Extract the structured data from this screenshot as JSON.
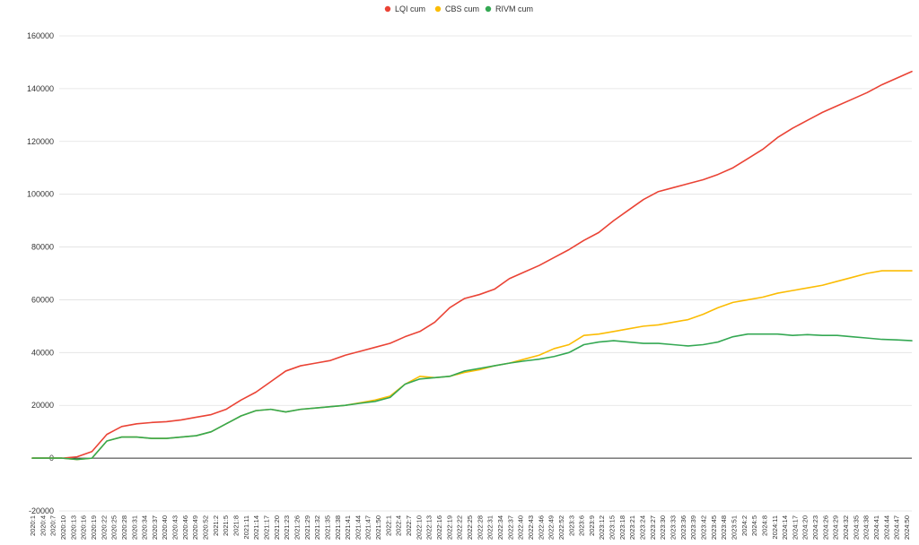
{
  "chart_data": {
    "type": "line",
    "title": "",
    "xlabel": "",
    "ylabel": "",
    "ylim": [
      -20000,
      160000
    ],
    "y_ticks": [
      -20000,
      0,
      20000,
      40000,
      60000,
      80000,
      100000,
      120000,
      140000,
      160000
    ],
    "grid": true,
    "legend_position": "top-center",
    "x_tick_labels": [
      "2020:1",
      "2020:4",
      "2020:7",
      "2020:10",
      "2020:13",
      "2020:16",
      "2020:19",
      "2020:22",
      "2020:25",
      "2020:28",
      "2020:31",
      "2020:34",
      "2020:37",
      "2020:40",
      "2020:43",
      "2020:46",
      "2020:49",
      "2020:52",
      "2021:2",
      "2021:5",
      "2021:8",
      "2021:11",
      "2021:14",
      "2021:17",
      "2021:20",
      "2021:23",
      "2021:26",
      "2021:29",
      "2021:32",
      "2021:35",
      "2021:38",
      "2021:41",
      "2021:44",
      "2021:47",
      "2021:50",
      "2022:1",
      "2022:4",
      "2022:7",
      "2022:10",
      "2022:13",
      "2022:16",
      "2022:19",
      "2022:22",
      "2022:25",
      "2022:28",
      "2022:31",
      "2022:34",
      "2022:37",
      "2022:40",
      "2022:43",
      "2022:46",
      "2022:49",
      "2022:52",
      "2023:3",
      "2023:6",
      "2023:9",
      "2023:12",
      "2023:15",
      "2023:18",
      "2023:21",
      "2023:24",
      "2023:27",
      "2023:30",
      "2023:33",
      "2023:36",
      "2023:39",
      "2023:42",
      "2023:45",
      "2023:48",
      "2023:51",
      "2024:2",
      "2024:5",
      "2024:8",
      "2024:11",
      "2024:14",
      "2024:17",
      "2024:20",
      "2024:23",
      "2024:26",
      "2024:29",
      "2024:32",
      "2024:35",
      "2024:38",
      "2024:41",
      "2024:44",
      "2024:47",
      "2024:50"
    ],
    "series": [
      {
        "name": "LQI cum",
        "color": "#ea4335",
        "values": [
          0,
          0,
          0,
          500,
          2500,
          9000,
          12000,
          13000,
          13500,
          13800,
          14500,
          15500,
          16500,
          18500,
          22000,
          25000,
          29000,
          33000,
          35000,
          36000,
          37000,
          39000,
          40500,
          42000,
          43500,
          46000,
          48000,
          51500,
          57000,
          60500,
          62000,
          64000,
          68000,
          70500,
          73000,
          76000,
          79000,
          82500,
          85500,
          90000,
          94000,
          98000,
          101000,
          102500,
          104000,
          105500,
          107500,
          110000,
          113500,
          117000,
          121500,
          125000,
          128000,
          131000,
          133500,
          136000,
          138500,
          141500,
          144000,
          146500
        ]
      },
      {
        "name": "CBS cum",
        "color": "#fbbc04",
        "values": [
          0,
          0,
          0,
          -500,
          0,
          6500,
          8000,
          8000,
          7500,
          7500,
          8000,
          8500,
          10000,
          13000,
          16000,
          18000,
          18500,
          17500,
          18500,
          19000,
          19500,
          20000,
          21000,
          22000,
          23500,
          28000,
          31000,
          30500,
          31000,
          32500,
          33500,
          35000,
          36000,
          37500,
          39000,
          41500,
          43000,
          46500,
          47000,
          48000,
          49000,
          50000,
          50500,
          51500,
          52500,
          54500,
          57000,
          59000,
          60000,
          61000,
          62500,
          63500,
          64500,
          65500,
          67000,
          68500,
          70000,
          71000,
          71000,
          71000
        ]
      },
      {
        "name": "RIVM cum",
        "color": "#34a853",
        "values": [
          0,
          0,
          0,
          -500,
          0,
          6500,
          8000,
          8000,
          7500,
          7500,
          8000,
          8500,
          10000,
          13000,
          16000,
          18000,
          18500,
          17500,
          18500,
          19000,
          19500,
          20000,
          20800,
          21500,
          23000,
          28000,
          30000,
          30500,
          31000,
          33000,
          34000,
          35000,
          36000,
          36800,
          37500,
          38500,
          40000,
          43000,
          44000,
          44500,
          44000,
          43500,
          43500,
          43000,
          42500,
          43000,
          44000,
          46000,
          47000,
          47000,
          47000,
          46500,
          46800,
          46500,
          46500,
          46000,
          45500,
          45000,
          44800,
          44500
        ]
      }
    ]
  }
}
